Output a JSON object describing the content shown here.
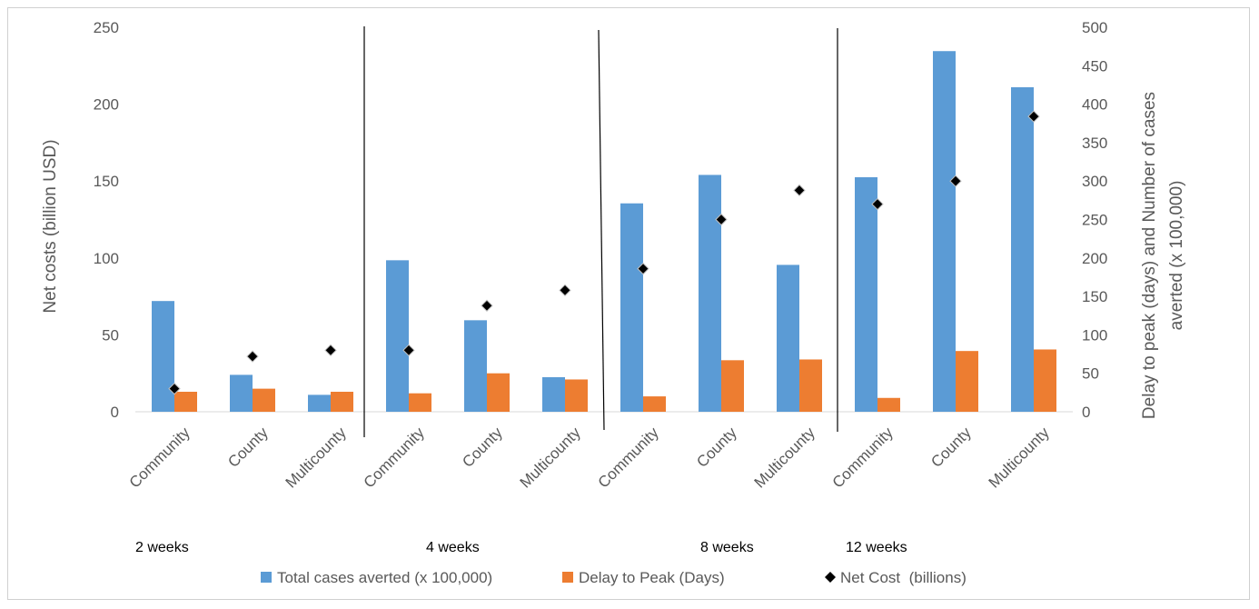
{
  "chart_data": {
    "type": "bar",
    "title": "",
    "categories": [
      "Community",
      "County",
      "Multicounty",
      "Community",
      "County",
      "Multicounty",
      "Community",
      "County",
      "Multicounty",
      "Community",
      "County",
      "Multicounty"
    ],
    "groups": [
      {
        "label": "2 weeks"
      },
      {
        "label": "4 weeks"
      },
      {
        "label": "8 weeks"
      },
      {
        "label": "12 weeks"
      }
    ],
    "ylabel_left": "Net costs (billion USD)",
    "ylabel_right_line1": "Delay to peak (days) and Number of cases",
    "ylabel_right_line2": "averted (x 100,000)",
    "ylim_left": [
      0,
      250
    ],
    "ylim_right": [
      0,
      500
    ],
    "yticks_left": [
      "0",
      "50",
      "100",
      "150",
      "200",
      "250"
    ],
    "yticks_right": [
      "0",
      "50",
      "100",
      "150",
      "200",
      "250",
      "300",
      "350",
      "400",
      "450",
      "500"
    ],
    "legend_position": "bottom",
    "series": [
      {
        "name": "Total cases averted (x 100,000)",
        "kind": "bar",
        "axis": "right",
        "color": "#5b9bd5",
        "values": [
          144,
          48,
          22,
          197,
          119,
          45,
          271,
          308,
          191,
          305,
          469,
          422
        ]
      },
      {
        "name": "Delay to Peak (Days)",
        "kind": "bar",
        "axis": "right",
        "color": "#ed7d31",
        "values": [
          26,
          30,
          26,
          24,
          50,
          42,
          20,
          67,
          68,
          18,
          79,
          81
        ]
      },
      {
        "name": "Net Cost  (billions)",
        "kind": "marker",
        "axis": "left",
        "color": "#000000",
        "values": [
          15,
          36,
          40,
          40,
          69,
          79,
          93,
          125,
          144,
          135,
          150,
          192
        ]
      }
    ]
  }
}
